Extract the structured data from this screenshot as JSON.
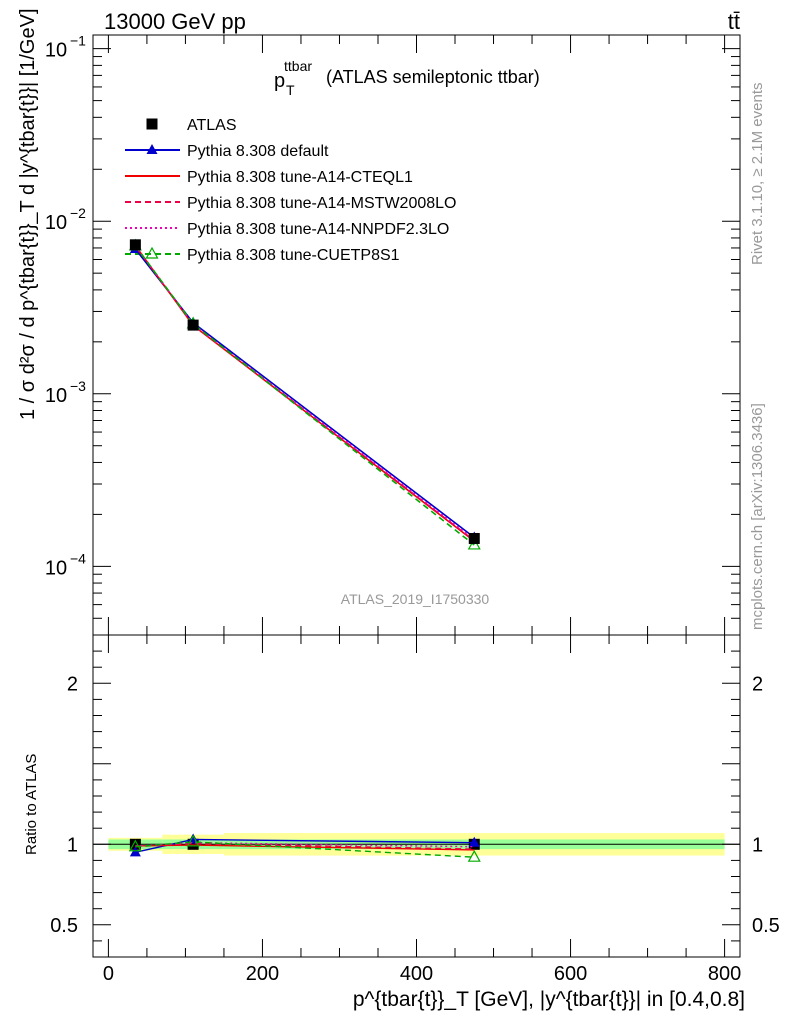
{
  "header": {
    "energy": "13000 GeV pp",
    "process": "tt̄"
  },
  "side": {
    "rivet": "Rivet 3.1.10, ≥ 2.1M events",
    "source": "mcplots.cern.ch [arXiv:1306.3436]"
  },
  "chart_data": [
    {
      "type": "line",
      "panel": "main",
      "title_main": "p",
      "title_sup": "ttbar",
      "title_sub": "T",
      "title_rest": "(ATLAS semileptonic ttbar)",
      "ylabel": "1 / σ d²σ / d p^{tbar{t}}_T d |y^{tbar{t}}| [1/GeV]",
      "yscale": "log",
      "ylim": [
        4e-05,
        0.12
      ],
      "xlim": [
        -20,
        820
      ],
      "yticks": [
        {
          "label": "10",
          "exp": "−4",
          "value": 0.0001
        },
        {
          "label": "10",
          "exp": "−3",
          "value": 0.001
        },
        {
          "label": "10",
          "exp": "−2",
          "value": 0.01
        },
        {
          "label": "10",
          "exp": "−1",
          "value": 0.1
        }
      ],
      "analysis_label": "ATLAS_2019_I1750330",
      "legend": [
        {
          "name": "ATLAS",
          "color": "#000000",
          "style": "solid",
          "marker": "square"
        },
        {
          "name": "Pythia 8.308 default",
          "color": "#0000cc",
          "style": "solid",
          "marker": "triangle"
        },
        {
          "name": "Pythia 8.308 tune-A14-CTEQL1",
          "color": "#ee0000",
          "style": "solid",
          "marker": "none"
        },
        {
          "name": "Pythia 8.308 tune-A14-MSTW2008LO",
          "color": "#ee0044",
          "style": "dashed",
          "marker": "none"
        },
        {
          "name": "Pythia 8.308 tune-A14-NNPDF2.3LO",
          "color": "#ee00bb",
          "style": "dotted",
          "marker": "none"
        },
        {
          "name": "Pythia 8.308 tune-CUETP8S1",
          "color": "#00aa00",
          "style": "dashed",
          "marker": "open-triangle"
        }
      ],
      "x": [
        35,
        110,
        475
      ],
      "series": [
        {
          "name": "ATLAS",
          "values": [
            0.0073,
            0.0025,
            0.000145
          ]
        },
        {
          "name": "Pythia 8.308 default",
          "values": [
            0.0069,
            0.00258,
            0.000147
          ]
        },
        {
          "name": "Pythia 8.308 tune-A14-CTEQL1",
          "values": [
            0.00722,
            0.00249,
            0.00014
          ]
        },
        {
          "name": "Pythia 8.308 tune-A14-MSTW2008LO",
          "values": [
            0.00718,
            0.00251,
            0.000141
          ]
        },
        {
          "name": "Pythia 8.308 tune-A14-NNPDF2.3LO",
          "values": [
            0.00722,
            0.00252,
            0.000143
          ]
        },
        {
          "name": "Pythia 8.308 tune-CUETP8S1",
          "values": [
            0.0072,
            0.00254,
            0.000133
          ]
        }
      ]
    },
    {
      "type": "line",
      "panel": "ratio",
      "ylabel": "Ratio to ATLAS",
      "xlabel": "p^{tbar{t}}_T [GeV], |y^{tbar{t}}| in [0.4,0.8]",
      "ylim": [
        0.3,
        2.3
      ],
      "xlim": [
        -20,
        820
      ],
      "xticks": [
        0,
        200,
        400,
        600,
        800
      ],
      "yticks": [
        0.5,
        1,
        2
      ],
      "x": [
        35,
        110,
        475
      ],
      "bins": [
        [
          0,
          70
        ],
        [
          70,
          150
        ],
        [
          150,
          800
        ]
      ],
      "band_stat": [
        [
          0.97,
          1.03
        ],
        [
          0.97,
          1.03
        ],
        [
          0.97,
          1.03
        ]
      ],
      "band_total": [
        [
          0.96,
          1.04
        ],
        [
          0.94,
          1.06
        ],
        [
          0.93,
          1.07
        ]
      ],
      "series": [
        {
          "name": "Pythia 8.308 default",
          "values": [
            0.95,
            1.03,
            1.01
          ]
        },
        {
          "name": "Pythia 8.308 tune-A14-CTEQL1",
          "values": [
            0.99,
            0.995,
            0.965
          ]
        },
        {
          "name": "Pythia 8.308 tune-A14-MSTW2008LO",
          "values": [
            0.985,
            1.005,
            0.97
          ]
        },
        {
          "name": "Pythia 8.308 tune-A14-NNPDF2.3LO",
          "values": [
            0.99,
            1.01,
            0.985
          ]
        },
        {
          "name": "Pythia 8.308 tune-CUETP8S1",
          "values": [
            0.985,
            1.015,
            0.92
          ]
        }
      ]
    }
  ]
}
